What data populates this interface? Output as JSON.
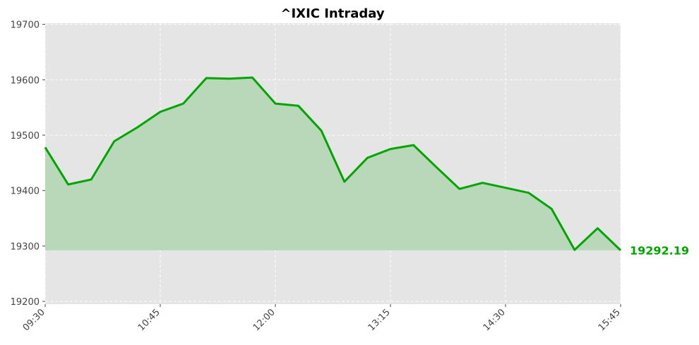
{
  "chart_data": {
    "type": "area",
    "title": "^IXIC Intraday",
    "xlabel": "",
    "ylabel": "",
    "x": [
      "09:30",
      "09:45",
      "10:00",
      "10:15",
      "10:30",
      "10:45",
      "11:00",
      "11:15",
      "11:30",
      "11:45",
      "12:00",
      "12:15",
      "12:30",
      "12:45",
      "13:00",
      "13:15",
      "13:30",
      "13:45",
      "14:00",
      "14:15",
      "14:30",
      "14:45",
      "15:00",
      "15:15",
      "15:30",
      "15:45"
    ],
    "x_ticks": [
      "09:30",
      "10:45",
      "12:00",
      "13:15",
      "14:30",
      "15:45"
    ],
    "ylim": [
      19195,
      19702
    ],
    "y_ticks": [
      19200,
      19300,
      19400,
      19500,
      19600,
      19700
    ],
    "series": [
      {
        "values": [
          19478,
          19411,
          19420,
          19489,
          19514,
          19542,
          19557,
          19603,
          19602,
          19604,
          19557,
          19553,
          19508,
          19416,
          19459,
          19475,
          19482,
          19442,
          19403,
          19414,
          19405,
          19396,
          19367,
          19293,
          19332,
          19292.19
        ]
      }
    ],
    "last_value_label": "19292.19",
    "fill_baseline": 19292.19,
    "line_color": "#00a600",
    "fill_color": "#b9d8b9",
    "plot_background": "#e5e5e5",
    "grid": true
  }
}
